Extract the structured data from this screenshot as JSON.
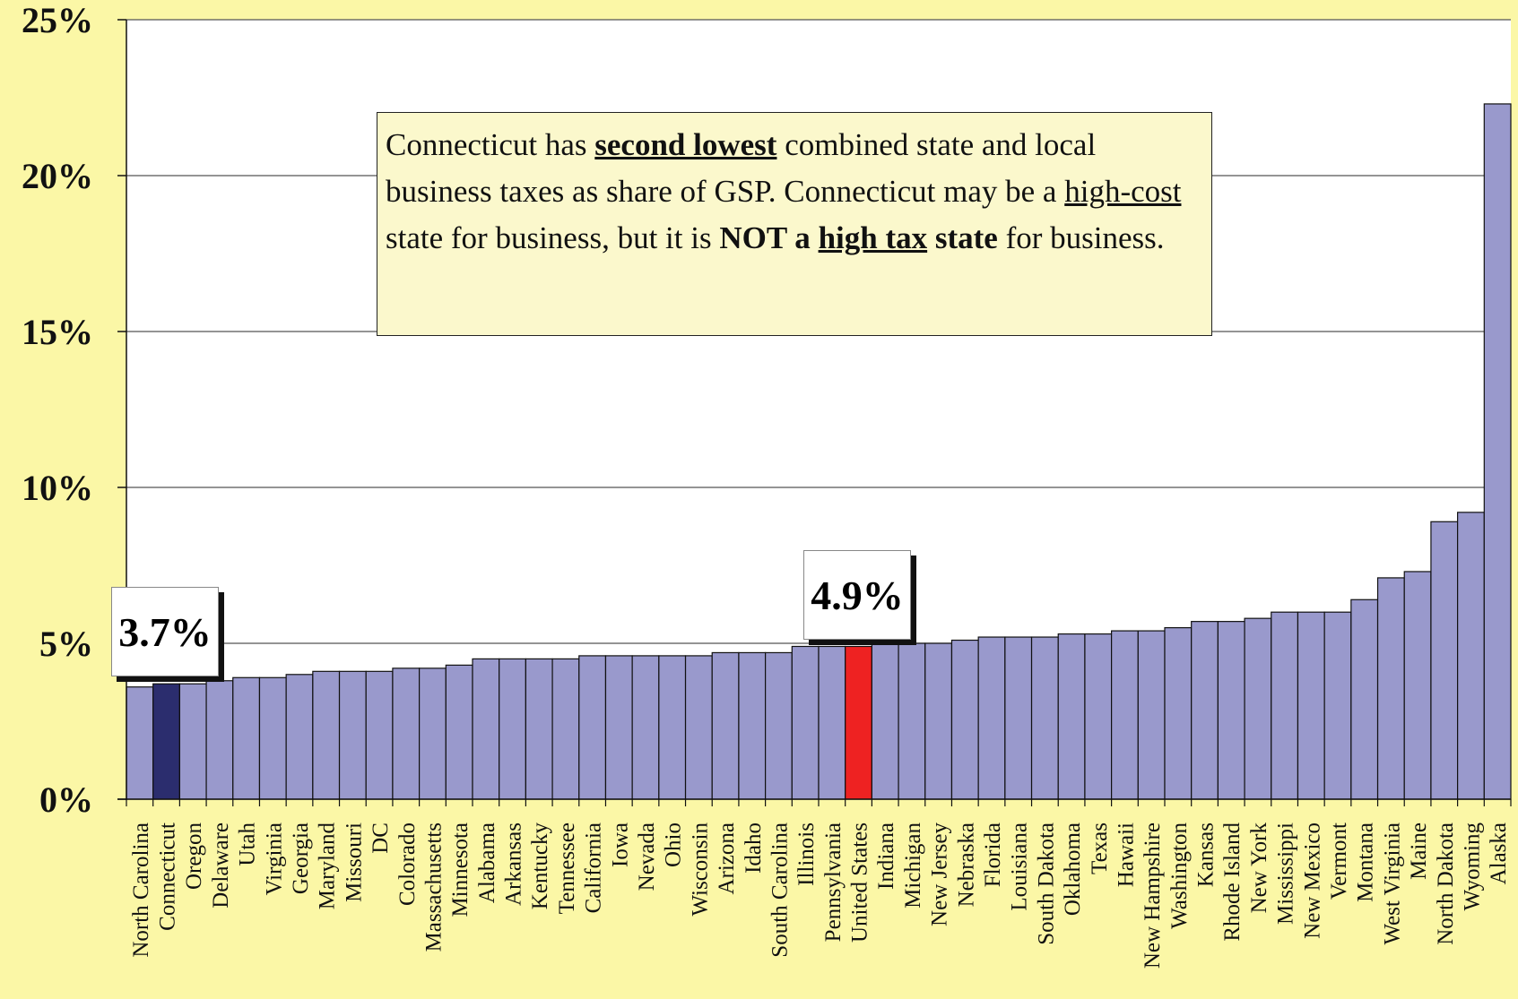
{
  "chart_data": {
    "type": "bar",
    "title": "",
    "xlabel": "",
    "ylabel": "",
    "ylim": [
      0,
      25
    ],
    "y_ticks": [
      "0%",
      "5%",
      "10%",
      "15%",
      "20%",
      "25%"
    ],
    "y_tick_values": [
      0,
      5,
      10,
      15,
      20,
      25
    ],
    "grid": true,
    "categories": [
      "North Carolina",
      "Connecticut",
      "Oregon",
      "Delaware",
      "Utah",
      "Virginia",
      "Georgia",
      "Maryland",
      "Missouri",
      "DC",
      "Colorado",
      "Massachusetts",
      "Minnesota",
      "Alabama",
      "Arkansas",
      "Kentucky",
      "Tennessee",
      "California",
      "Iowa",
      "Nevada",
      "Ohio",
      "Wisconsin",
      "Arizona",
      "Idaho",
      "South Carolina",
      "Illinois",
      "Pennsylvania",
      "United States",
      "Indiana",
      "Michigan",
      "New Jersey",
      "Nebraska",
      "Florida",
      "Louisiana",
      "South Dakota",
      "Oklahoma",
      "Texas",
      "Hawaii",
      "New Hampshire",
      "Washington",
      "Kansas",
      "Rhode Island",
      "New York",
      "Mississippi",
      "New Mexico",
      "Vermont",
      "Montana",
      "West Virginia",
      "Maine",
      "North Dakota",
      "Wyoming",
      "Alaska"
    ],
    "values": [
      3.6,
      3.7,
      3.7,
      3.8,
      3.9,
      3.9,
      4.0,
      4.1,
      4.1,
      4.1,
      4.2,
      4.2,
      4.3,
      4.5,
      4.5,
      4.5,
      4.5,
      4.6,
      4.6,
      4.6,
      4.6,
      4.6,
      4.7,
      4.7,
      4.7,
      4.9,
      4.9,
      4.9,
      5.0,
      5.0,
      5.0,
      5.1,
      5.2,
      5.2,
      5.2,
      5.3,
      5.3,
      5.4,
      5.4,
      5.5,
      5.7,
      5.7,
      5.8,
      6.0,
      6.0,
      6.0,
      6.4,
      7.1,
      7.3,
      8.9,
      9.2,
      22.3
    ],
    "colors": {
      "default": "#9999cc",
      "Connecticut": "#2b2d6e",
      "United States": "#ee2222",
      "gridline": "#555555",
      "plot_background": "#ffffff",
      "page_background": "#fbf7a6"
    },
    "annotations": {
      "connecticut_label": "3.7%",
      "us_label": "4.9%",
      "note": {
        "t1": "Connecticut has ",
        "t2": "second lowest",
        "t3": " combined state and local business taxes as share of GSP.  Connecticut may be a ",
        "t4": "high-cost",
        "t5": " state for business, but it is ",
        "t6": "NOT a ",
        "t7": "high tax",
        "t8": " state",
        "t9": " for business."
      }
    }
  }
}
